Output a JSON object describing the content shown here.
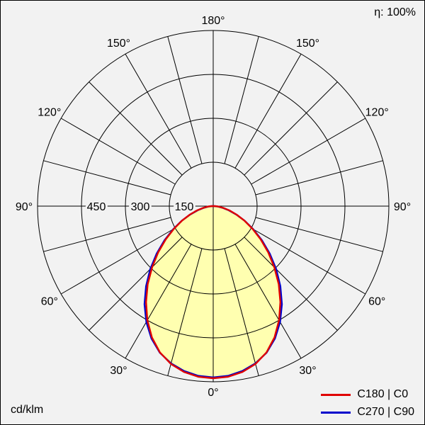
{
  "frame": {
    "background": "#f2f2f2",
    "border_color": "#000000"
  },
  "header": {
    "efficiency": "η: 100%"
  },
  "footer": {
    "unit": "cd/klm"
  },
  "legend": {
    "items": [
      {
        "label": "C180 | C0",
        "color": "#e00000"
      },
      {
        "label": "C270 | C90",
        "color": "#0000cc"
      }
    ]
  },
  "chart_data": {
    "type": "polar",
    "description": "Polar luminous intensity distribution curve of a luminaire, 0° = nadir (down), mirrored left/right",
    "unit": "cd/klm",
    "efficiency_label": "η: 100%",
    "angle_labels": [
      "0°",
      "30°",
      "60°",
      "90°",
      "120°",
      "150°",
      "180°"
    ],
    "angle_label_step_deg": 30,
    "grid_angle_step_deg": 15,
    "radial_ticks_cd_per_klm": [
      150,
      300,
      450
    ],
    "radial_max_cd_per_klm": 600,
    "angles_from_nadir_deg": [
      0,
      5,
      10,
      15,
      20,
      25,
      30,
      35,
      40,
      45,
      50,
      55,
      60,
      65,
      70,
      75,
      80,
      85,
      90
    ],
    "angles_mirrored": true,
    "series": [
      {
        "name": "C180 | C0",
        "color": "#e00000",
        "values": [
          588,
          585,
          575,
          558,
          532,
          495,
          450,
          400,
          348,
          295,
          245,
          198,
          155,
          118,
          85,
          58,
          35,
          18,
          6
        ]
      },
      {
        "name": "C270 | C90",
        "color": "#0000cc",
        "values": [
          585,
          582,
          572,
          556,
          533,
          499,
          457,
          409,
          357,
          304,
          252,
          203,
          158,
          119,
          84,
          55,
          32,
          15,
          4
        ]
      }
    ],
    "fill_color": "#ffffb0",
    "grid_color": "#000000",
    "legend_position": "bottom-right"
  }
}
